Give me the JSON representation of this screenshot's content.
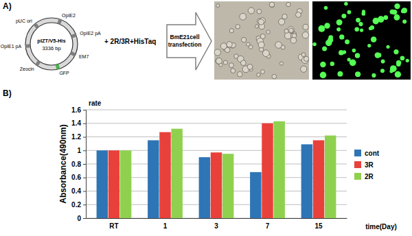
{
  "panel_a": {
    "label": "A)",
    "plasmid": {
      "name": "pIZT/V5-His",
      "size": "3336 bp",
      "features": [
        "OpIE2",
        "OpIE2 pA",
        "EM7",
        "GFP",
        "Zeocin",
        "OpIE1 pA",
        "pUC ori"
      ]
    },
    "insert": "+ 2R/3R+HisTaq",
    "arrow_text": [
      "BmE21cell",
      "transfection"
    ]
  },
  "chart_data": {
    "type": "bar",
    "panel_label": "B)",
    "y_label": "Absorbance(490nm)",
    "y_unit_label": "rate",
    "x_label": "time(Day)",
    "categories": [
      "RT",
      "1",
      "3",
      "7",
      "15"
    ],
    "series": [
      {
        "name": "cont",
        "color": "#2e75b6",
        "values": [
          1.0,
          1.15,
          0.9,
          0.68,
          1.09
        ]
      },
      {
        "name": "3R",
        "color": "#e8413b",
        "values": [
          1.0,
          1.27,
          0.97,
          1.4,
          1.15
        ]
      },
      {
        "name": "2R",
        "color": "#8fd14f",
        "values": [
          1.0,
          1.32,
          0.95,
          1.43,
          1.22
        ]
      }
    ],
    "ylim": [
      0,
      1.6
    ],
    "yticks": [
      0,
      0.2,
      0.4,
      0.6,
      0.8,
      1,
      1.2,
      1.4,
      1.6
    ],
    "grid": true,
    "legend": "right"
  }
}
